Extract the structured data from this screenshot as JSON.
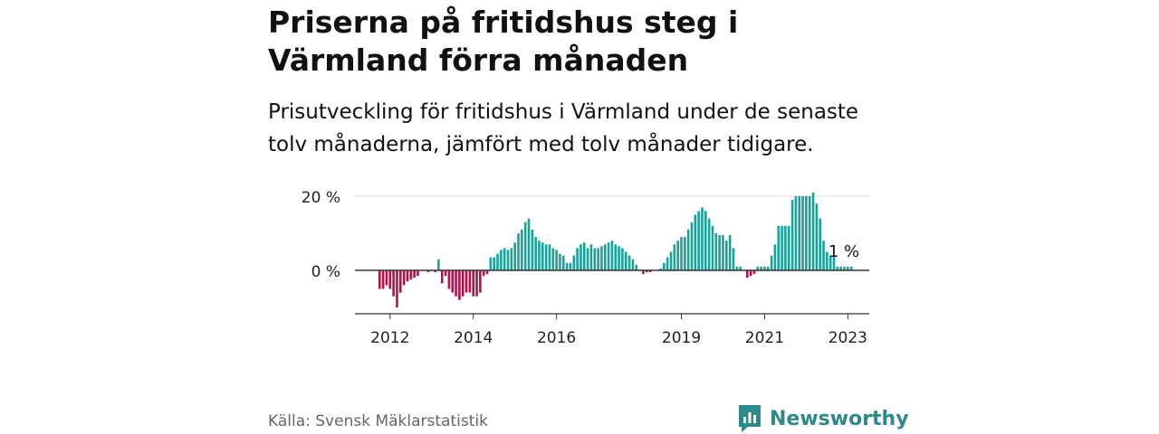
{
  "title": "Priserna på fritidshus steg i Värmland förra månaden",
  "subtitle": "Prisutveckling för fritidshus i Värmland under de senaste tolv månaderna, jämfört med tolv månader tidigare.",
  "source": "Källa: Svensk Mäklarstatistik",
  "brand": "Newsworthy",
  "colors": {
    "positive": "#17a398",
    "negative": "#b5104a",
    "brand": "#2c8a8a"
  },
  "chart_data": {
    "type": "bar",
    "x_start": "2011-10",
    "y_ticks": [
      0,
      20
    ],
    "y_tick_labels": [
      "0 %",
      "20 %"
    ],
    "ylim": [
      -11,
      21
    ],
    "x_ticks": [
      "2012",
      "2014",
      "2016",
      "2019",
      "2021",
      "2023"
    ],
    "x_tick_months": [
      "2012-01",
      "2014-01",
      "2016-01",
      "2019-01",
      "2021-01",
      "2023-01"
    ],
    "last_value_label": "1 %",
    "values": [
      -5,
      -5,
      -4,
      -5,
      -7,
      -10,
      -6,
      -4,
      -3,
      -2.5,
      -2,
      -1.5,
      null,
      null,
      -0.5,
      null,
      -0.5,
      3,
      -3.5,
      -1.5,
      -5,
      -6,
      -7,
      -8,
      -7,
      -6,
      -6,
      -7,
      -7,
      -6,
      -1.5,
      -1,
      3.5,
      3.5,
      4.5,
      5.5,
      6,
      5.5,
      6,
      7.5,
      10,
      11,
      13,
      14,
      11,
      9,
      8,
      7.5,
      7,
      7,
      6,
      5.5,
      4.5,
      4,
      2,
      2,
      4,
      6,
      7,
      7.5,
      6,
      7,
      6,
      6,
      6.5,
      7,
      7.5,
      8,
      7,
      6.5,
      6,
      5,
      4,
      3,
      1.5,
      null,
      -1,
      -0.5,
      -0.5,
      null,
      null,
      0.5,
      2,
      3.5,
      5,
      7,
      8,
      9,
      9,
      11,
      13,
      15,
      16,
      17,
      16,
      14,
      12,
      10,
      9.5,
      9.5,
      8,
      9.5,
      6,
      1,
      1,
      null,
      -2,
      -1.5,
      -1,
      1,
      1,
      1,
      1,
      4,
      7,
      12,
      12,
      12,
      12,
      19,
      20,
      20,
      20,
      20,
      20,
      21,
      18,
      14,
      8,
      5,
      4,
      4,
      1,
      1,
      1,
      1,
      1
    ]
  }
}
